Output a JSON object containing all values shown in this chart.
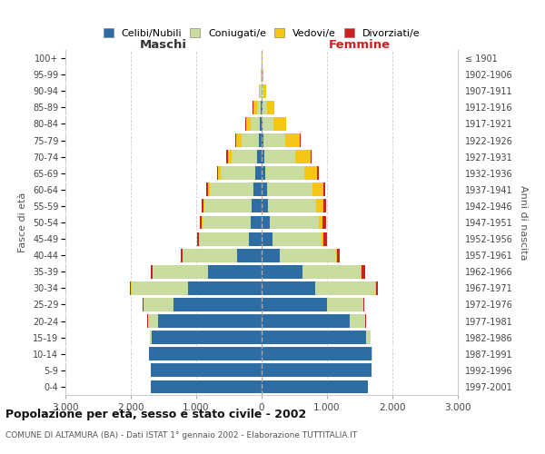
{
  "age_groups": [
    "0-4",
    "5-9",
    "10-14",
    "15-19",
    "20-24",
    "25-29",
    "30-34",
    "35-39",
    "40-44",
    "45-49",
    "50-54",
    "55-59",
    "60-64",
    "65-69",
    "70-74",
    "75-79",
    "80-84",
    "85-89",
    "90-94",
    "95-99",
    "100+"
  ],
  "birth_years": [
    "1997-2001",
    "1992-1996",
    "1987-1991",
    "1982-1986",
    "1977-1981",
    "1972-1976",
    "1967-1971",
    "1962-1966",
    "1957-1961",
    "1952-1956",
    "1947-1951",
    "1942-1946",
    "1937-1941",
    "1932-1936",
    "1927-1931",
    "1922-1926",
    "1917-1921",
    "1912-1916",
    "1907-1911",
    "1902-1906",
    "≤ 1901"
  ],
  "maschi_celibi": [
    1700,
    1700,
    1720,
    1680,
    1580,
    1350,
    1130,
    820,
    370,
    195,
    160,
    150,
    130,
    100,
    70,
    40,
    25,
    15,
    5,
    2,
    0
  ],
  "maschi_coniugati": [
    0,
    0,
    5,
    35,
    160,
    450,
    860,
    840,
    840,
    760,
    740,
    720,
    660,
    520,
    390,
    270,
    140,
    60,
    20,
    5,
    0
  ],
  "maschi_vedovi": [
    0,
    0,
    0,
    0,
    0,
    5,
    5,
    5,
    5,
    5,
    10,
    20,
    30,
    45,
    60,
    80,
    75,
    55,
    20,
    5,
    3
  ],
  "maschi_divorziati": [
    0,
    0,
    0,
    0,
    5,
    10,
    20,
    25,
    20,
    25,
    30,
    30,
    30,
    20,
    15,
    10,
    5,
    5,
    2,
    0,
    0
  ],
  "femmine_nubili": [
    1620,
    1680,
    1680,
    1600,
    1350,
    1000,
    820,
    620,
    280,
    160,
    120,
    100,
    80,
    60,
    40,
    25,
    15,
    10,
    5,
    3,
    0
  ],
  "femmine_coniugate": [
    0,
    5,
    10,
    60,
    240,
    550,
    920,
    900,
    860,
    760,
    750,
    740,
    700,
    590,
    470,
    330,
    170,
    70,
    20,
    5,
    0
  ],
  "femmine_vedove": [
    0,
    0,
    0,
    0,
    0,
    5,
    5,
    10,
    15,
    30,
    60,
    100,
    160,
    200,
    240,
    230,
    190,
    110,
    45,
    15,
    8
  ],
  "femmine_divorziate": [
    0,
    0,
    0,
    0,
    5,
    15,
    35,
    50,
    45,
    45,
    55,
    40,
    30,
    20,
    15,
    10,
    5,
    5,
    2,
    0,
    0
  ],
  "color_celibi": "#2e6da4",
  "color_coniugati": "#c8dca0",
  "color_vedovi": "#f5c518",
  "color_divorziati": "#cc2020",
  "title": "Popolazione per età, sesso e stato civile - 2002",
  "subtitle": "COMUNE DI ALTAMURA (BA) - Dati ISTAT 1° gennaio 2002 - Elaborazione TUTTITALIA.IT",
  "legend_labels": [
    "Celibi/Nubili",
    "Coniugati/e",
    "Vedovi/e",
    "Divorziati/e"
  ],
  "xlim": 3000,
  "label_maschi": "Maschi",
  "label_femmine": "Femmine",
  "ylabel_left": "Fasce di età",
  "ylabel_right": "Anni di nascita",
  "bg_color": "#ffffff"
}
